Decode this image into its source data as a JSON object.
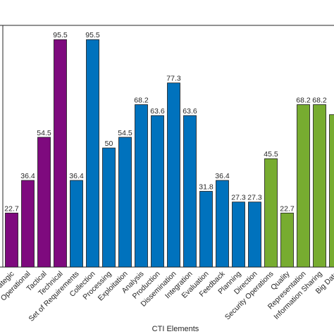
{
  "chart_data": {
    "type": "bar",
    "xlabel": "CTI Elements",
    "ylabel": "",
    "ylim": [
      0,
      100
    ],
    "grid": false,
    "categories": [
      "Strategic",
      "Operational",
      "Tactical",
      "Technical",
      "Set of Requirements",
      "Collection",
      "Processing",
      "Exploitation",
      "Analysis",
      "Production",
      "Dissemination",
      "Integration",
      "Evaluation",
      "Feedback",
      "Planning",
      "Direction",
      "Security Operations",
      "Quality",
      "Representation",
      "Information Sharing",
      "Big Data"
    ],
    "value_labels": [
      "22.7",
      "36.4",
      "54.5",
      "95.5",
      "36.4",
      "95.5",
      "50",
      "54.5",
      "68.2",
      "63.6",
      "77.3",
      "63.6",
      "31.8",
      "36.4",
      "27.3",
      "27.3",
      "45.5",
      "22.7",
      "68.2",
      "68.2",
      ""
    ],
    "values": [
      22.7,
      36.4,
      54.5,
      95.5,
      36.4,
      95.5,
      50,
      54.5,
      68.2,
      63.6,
      77.3,
      63.6,
      31.8,
      36.4,
      27.3,
      27.3,
      45.5,
      22.7,
      68.2,
      68.2,
      64
    ],
    "group_colors": [
      "#7e0a7e",
      "#0072bd",
      "#77ac30"
    ],
    "category_groups": [
      0,
      0,
      0,
      0,
      1,
      1,
      1,
      1,
      1,
      1,
      1,
      1,
      1,
      1,
      1,
      1,
      2,
      2,
      2,
      2,
      2
    ]
  }
}
